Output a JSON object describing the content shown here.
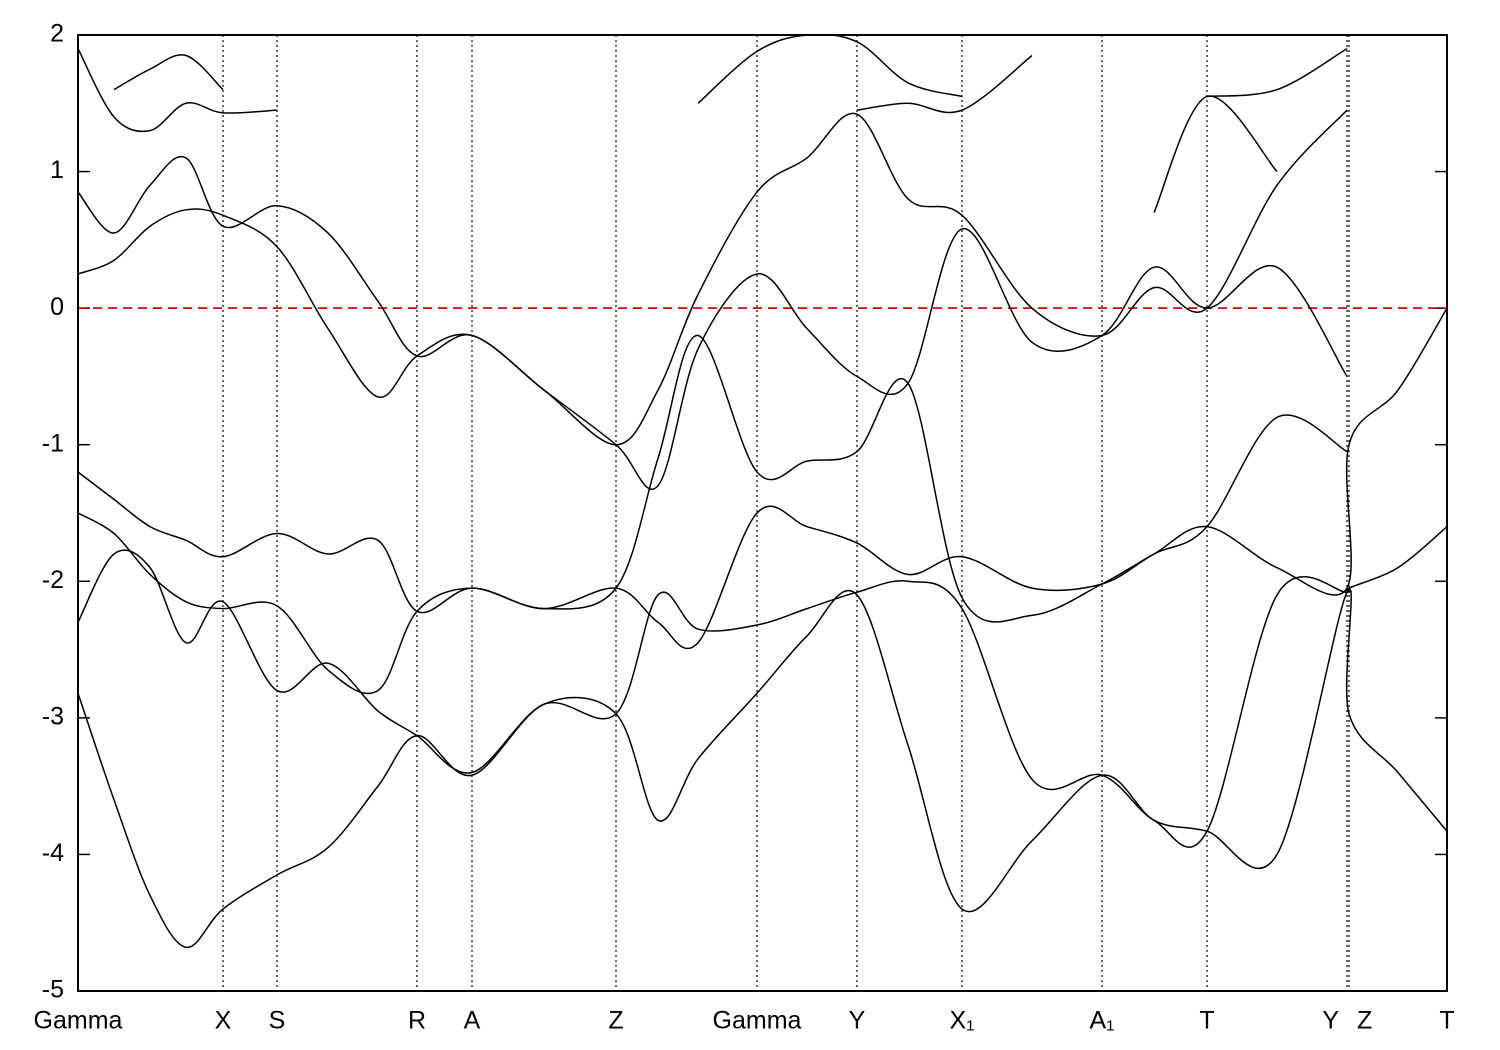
{
  "chart_data": {
    "type": "line",
    "x": [
      0,
      36,
      72,
      108,
      145,
      199,
      250,
      300,
      339,
      394,
      466,
      538,
      580,
      620,
      679,
      729,
      779,
      830,
      884,
      954,
      1024,
      1076,
      1129,
      1199,
      1269,
      1271,
      1320,
      1369
    ],
    "xlim": [
      0,
      1369
    ],
    "xticks": [
      {
        "value": 0,
        "label": "Gamma"
      },
      {
        "value": 145,
        "label": "X"
      },
      {
        "value": 199,
        "label": "S"
      },
      {
        "value": 339,
        "label": "R"
      },
      {
        "value": 394,
        "label": "A"
      },
      {
        "value": 538,
        "label": "Z"
      },
      {
        "value": 679,
        "label": "Gamma"
      },
      {
        "value": 779,
        "label": "Y"
      },
      {
        "value": 884,
        "label": "X₁"
      },
      {
        "value": 1024,
        "label": "A₁"
      },
      {
        "value": 1129,
        "label": "T"
      },
      {
        "value": 1269,
        "label": "Y"
      },
      {
        "value": 1271,
        "label": "Z"
      },
      {
        "value": 1369,
        "label": "T"
      }
    ],
    "ylim": [
      -5,
      2
    ],
    "yticks": [
      -5,
      -4,
      -3,
      -2,
      -1,
      0,
      1,
      2
    ],
    "fermi_level": 0,
    "fermi_color": "#e00000",
    "series": [
      {
        "color": "#000000",
        "values": [
          -2.82,
          -3.6,
          -4.3,
          -4.68,
          -4.4,
          -4.15,
          -3.95,
          -3.5,
          -3.13,
          -3.42,
          -2.9,
          -2.97,
          -3.75,
          -3.3,
          -2.82,
          -2.4,
          -2.1,
          -3.2,
          -4.4,
          -3.9,
          -3.42,
          -3.75,
          -3.83,
          -4.0,
          -2.08,
          -2.97,
          -3.4,
          -3.83
        ]
      },
      {
        "color": "#000000",
        "values": [
          -2.3,
          -1.8,
          -1.9,
          -2.45,
          -2.15,
          -2.8,
          -2.6,
          -2.95,
          -3.13,
          -3.4,
          -2.9,
          -2.97,
          -2.1,
          -2.35,
          -2.32,
          -2.2,
          -2.08,
          -2.0,
          -2.2,
          -3.45,
          -3.42,
          -3.75,
          -3.83,
          -2.1,
          -2.08,
          -2.05,
          -1.9,
          -1.6
        ]
      },
      {
        "color": "#000000",
        "values": [
          -1.5,
          -1.65,
          -1.95,
          -2.15,
          -2.2,
          -2.18,
          -2.65,
          -2.8,
          -2.22,
          -2.05,
          -2.2,
          -2.05,
          -2.3,
          -2.45,
          -1.5,
          -1.6,
          -1.72,
          -1.95,
          -1.82,
          -2.05,
          -2.02,
          -1.8,
          -1.6,
          -1.9,
          -2.05,
          -1.0,
          -0.6,
          0.0
        ]
      },
      {
        "color": "#000000",
        "values": [
          -1.2,
          -1.4,
          -1.6,
          -1.7,
          -1.82,
          -1.65,
          -1.8,
          -1.7,
          -2.22,
          -2.05,
          -2.2,
          -2.05,
          -1.1,
          -0.2,
          -1.2,
          -1.12,
          -1.05,
          -0.55,
          -2.12,
          -2.25,
          -2.02,
          -1.8,
          -1.6,
          -0.8,
          -1.05,
          null,
          null,
          null
        ]
      },
      {
        "color": "#000000",
        "values": [
          0.25,
          0.35,
          0.6,
          0.72,
          0.68,
          0.45,
          -0.15,
          -0.65,
          -0.35,
          -0.2,
          -0.6,
          -1.0,
          -1.3,
          -0.3,
          0.25,
          -0.15,
          -0.5,
          -0.55,
          0.58,
          -0.25,
          -0.2,
          0.3,
          0.0,
          0.3,
          -0.5,
          null,
          null,
          null
        ]
      },
      {
        "color": "#000000",
        "values": [
          0.85,
          0.55,
          0.9,
          1.1,
          0.6,
          0.75,
          0.55,
          0.05,
          -0.35,
          -0.2,
          -0.6,
          -1.0,
          -0.6,
          0.1,
          0.85,
          1.1,
          1.42,
          0.8,
          0.68,
          0.0,
          -0.2,
          0.15,
          0.0,
          0.9,
          1.45,
          null,
          null,
          null
        ]
      },
      {
        "color": "#000000",
        "values": [
          1.9,
          1.4,
          1.3,
          1.5,
          1.43,
          1.45,
          null,
          null,
          null,
          null,
          null,
          null,
          null,
          1.5,
          1.88,
          2.0,
          1.95,
          1.65,
          1.55,
          null,
          null,
          null,
          1.55,
          1.6,
          1.9,
          null,
          null,
          null
        ]
      },
      {
        "color": "#000000",
        "values": [
          null,
          1.6,
          1.75,
          1.85,
          1.6,
          null,
          null,
          null,
          null,
          null,
          null,
          null,
          null,
          null,
          null,
          null,
          1.45,
          1.5,
          1.45,
          1.85,
          null,
          0.7,
          1.55,
          1.0,
          null,
          null,
          null,
          null
        ]
      }
    ]
  }
}
